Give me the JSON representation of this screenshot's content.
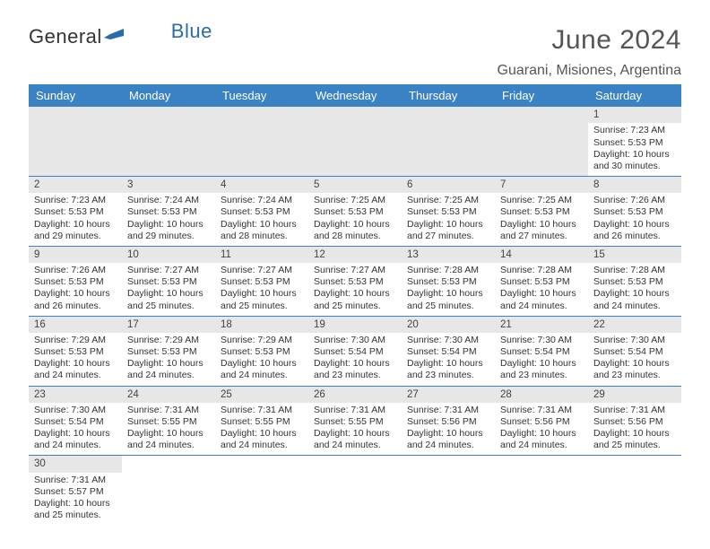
{
  "brand": {
    "part1": "General",
    "part2": "Blue"
  },
  "title": "June 2024",
  "location": "Guarani, Misiones, Argentina",
  "dayHeaders": [
    "Sunday",
    "Monday",
    "Tuesday",
    "Wednesday",
    "Thursday",
    "Friday",
    "Saturday"
  ],
  "colors": {
    "header_bg": "#3b82c4",
    "header_fg": "#ffffff",
    "daynum_bg": "#e7e7e7",
    "row_border": "#3b82c4",
    "text": "#333333",
    "brand_blue": "#2a6bb0"
  },
  "weeks": [
    [
      null,
      null,
      null,
      null,
      null,
      null,
      {
        "n": "1",
        "sr": "Sunrise: 7:23 AM",
        "ss": "Sunset: 5:53 PM",
        "d1": "Daylight: 10 hours",
        "d2": "and 30 minutes."
      }
    ],
    [
      {
        "n": "2",
        "sr": "Sunrise: 7:23 AM",
        "ss": "Sunset: 5:53 PM",
        "d1": "Daylight: 10 hours",
        "d2": "and 29 minutes."
      },
      {
        "n": "3",
        "sr": "Sunrise: 7:24 AM",
        "ss": "Sunset: 5:53 PM",
        "d1": "Daylight: 10 hours",
        "d2": "and 29 minutes."
      },
      {
        "n": "4",
        "sr": "Sunrise: 7:24 AM",
        "ss": "Sunset: 5:53 PM",
        "d1": "Daylight: 10 hours",
        "d2": "and 28 minutes."
      },
      {
        "n": "5",
        "sr": "Sunrise: 7:25 AM",
        "ss": "Sunset: 5:53 PM",
        "d1": "Daylight: 10 hours",
        "d2": "and 28 minutes."
      },
      {
        "n": "6",
        "sr": "Sunrise: 7:25 AM",
        "ss": "Sunset: 5:53 PM",
        "d1": "Daylight: 10 hours",
        "d2": "and 27 minutes."
      },
      {
        "n": "7",
        "sr": "Sunrise: 7:25 AM",
        "ss": "Sunset: 5:53 PM",
        "d1": "Daylight: 10 hours",
        "d2": "and 27 minutes."
      },
      {
        "n": "8",
        "sr": "Sunrise: 7:26 AM",
        "ss": "Sunset: 5:53 PM",
        "d1": "Daylight: 10 hours",
        "d2": "and 26 minutes."
      }
    ],
    [
      {
        "n": "9",
        "sr": "Sunrise: 7:26 AM",
        "ss": "Sunset: 5:53 PM",
        "d1": "Daylight: 10 hours",
        "d2": "and 26 minutes."
      },
      {
        "n": "10",
        "sr": "Sunrise: 7:27 AM",
        "ss": "Sunset: 5:53 PM",
        "d1": "Daylight: 10 hours",
        "d2": "and 25 minutes."
      },
      {
        "n": "11",
        "sr": "Sunrise: 7:27 AM",
        "ss": "Sunset: 5:53 PM",
        "d1": "Daylight: 10 hours",
        "d2": "and 25 minutes."
      },
      {
        "n": "12",
        "sr": "Sunrise: 7:27 AM",
        "ss": "Sunset: 5:53 PM",
        "d1": "Daylight: 10 hours",
        "d2": "and 25 minutes."
      },
      {
        "n": "13",
        "sr": "Sunrise: 7:28 AM",
        "ss": "Sunset: 5:53 PM",
        "d1": "Daylight: 10 hours",
        "d2": "and 25 minutes."
      },
      {
        "n": "14",
        "sr": "Sunrise: 7:28 AM",
        "ss": "Sunset: 5:53 PM",
        "d1": "Daylight: 10 hours",
        "d2": "and 24 minutes."
      },
      {
        "n": "15",
        "sr": "Sunrise: 7:28 AM",
        "ss": "Sunset: 5:53 PM",
        "d1": "Daylight: 10 hours",
        "d2": "and 24 minutes."
      }
    ],
    [
      {
        "n": "16",
        "sr": "Sunrise: 7:29 AM",
        "ss": "Sunset: 5:53 PM",
        "d1": "Daylight: 10 hours",
        "d2": "and 24 minutes."
      },
      {
        "n": "17",
        "sr": "Sunrise: 7:29 AM",
        "ss": "Sunset: 5:53 PM",
        "d1": "Daylight: 10 hours",
        "d2": "and 24 minutes."
      },
      {
        "n": "18",
        "sr": "Sunrise: 7:29 AM",
        "ss": "Sunset: 5:53 PM",
        "d1": "Daylight: 10 hours",
        "d2": "and 24 minutes."
      },
      {
        "n": "19",
        "sr": "Sunrise: 7:30 AM",
        "ss": "Sunset: 5:54 PM",
        "d1": "Daylight: 10 hours",
        "d2": "and 23 minutes."
      },
      {
        "n": "20",
        "sr": "Sunrise: 7:30 AM",
        "ss": "Sunset: 5:54 PM",
        "d1": "Daylight: 10 hours",
        "d2": "and 23 minutes."
      },
      {
        "n": "21",
        "sr": "Sunrise: 7:30 AM",
        "ss": "Sunset: 5:54 PM",
        "d1": "Daylight: 10 hours",
        "d2": "and 23 minutes."
      },
      {
        "n": "22",
        "sr": "Sunrise: 7:30 AM",
        "ss": "Sunset: 5:54 PM",
        "d1": "Daylight: 10 hours",
        "d2": "and 23 minutes."
      }
    ],
    [
      {
        "n": "23",
        "sr": "Sunrise: 7:30 AM",
        "ss": "Sunset: 5:54 PM",
        "d1": "Daylight: 10 hours",
        "d2": "and 24 minutes."
      },
      {
        "n": "24",
        "sr": "Sunrise: 7:31 AM",
        "ss": "Sunset: 5:55 PM",
        "d1": "Daylight: 10 hours",
        "d2": "and 24 minutes."
      },
      {
        "n": "25",
        "sr": "Sunrise: 7:31 AM",
        "ss": "Sunset: 5:55 PM",
        "d1": "Daylight: 10 hours",
        "d2": "and 24 minutes."
      },
      {
        "n": "26",
        "sr": "Sunrise: 7:31 AM",
        "ss": "Sunset: 5:55 PM",
        "d1": "Daylight: 10 hours",
        "d2": "and 24 minutes."
      },
      {
        "n": "27",
        "sr": "Sunrise: 7:31 AM",
        "ss": "Sunset: 5:56 PM",
        "d1": "Daylight: 10 hours",
        "d2": "and 24 minutes."
      },
      {
        "n": "28",
        "sr": "Sunrise: 7:31 AM",
        "ss": "Sunset: 5:56 PM",
        "d1": "Daylight: 10 hours",
        "d2": "and 24 minutes."
      },
      {
        "n": "29",
        "sr": "Sunrise: 7:31 AM",
        "ss": "Sunset: 5:56 PM",
        "d1": "Daylight: 10 hours",
        "d2": "and 25 minutes."
      }
    ],
    [
      {
        "n": "30",
        "sr": "Sunrise: 7:31 AM",
        "ss": "Sunset: 5:57 PM",
        "d1": "Daylight: 10 hours",
        "d2": "and 25 minutes."
      },
      null,
      null,
      null,
      null,
      null,
      null
    ]
  ]
}
